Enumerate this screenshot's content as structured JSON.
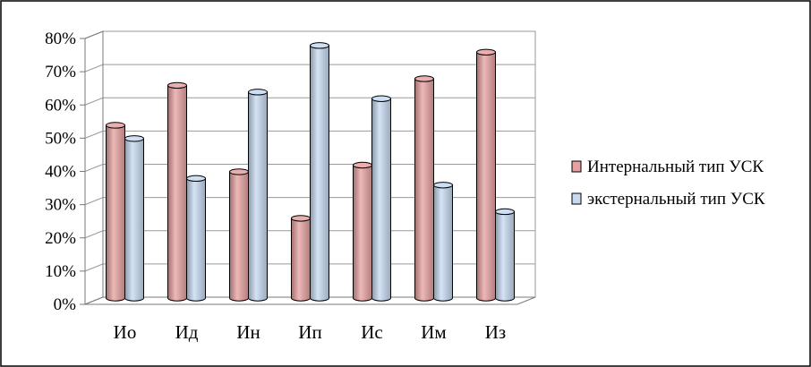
{
  "chart_data": {
    "type": "bar",
    "categories": [
      "Ио",
      "Ид",
      "Ин",
      "Ип",
      "Ис",
      "Им",
      "Из"
    ],
    "series": [
      {
        "name": "Интернальный тип УСК",
        "values": [
          52,
          64,
          38,
          24,
          40,
          66,
          74
        ],
        "color": "#e6a0a0"
      },
      {
        "name": "экстернальный тип УСК",
        "values": [
          48,
          36,
          62,
          76,
          60,
          34,
          26
        ],
        "color": "#c6d9f1"
      }
    ],
    "ylim": [
      0,
      80
    ],
    "yticks": [
      "0%",
      "10%",
      "20%",
      "30%",
      "40%",
      "50%",
      "60%",
      "70%",
      "80%"
    ],
    "grid": true,
    "legend_position": "right",
    "bar_style": "3d-cylinder"
  }
}
